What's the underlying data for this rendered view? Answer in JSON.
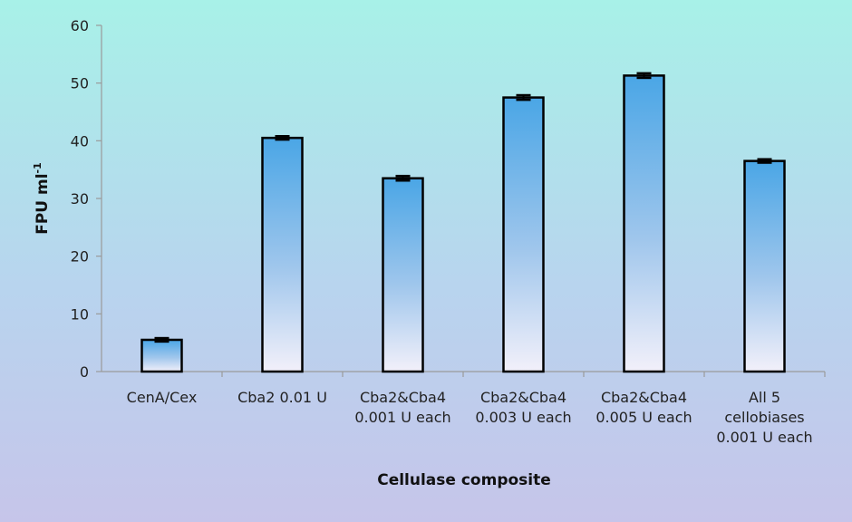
{
  "chart_data": {
    "type": "bar",
    "xlabel": "Cellulase composite",
    "ylabel": {
      "main": "FPU ml",
      "sup": "-1"
    },
    "ylim": [
      0,
      60
    ],
    "yticks": [
      0,
      10,
      20,
      30,
      40,
      50,
      60
    ],
    "grid": false,
    "legend": "none",
    "categories": [
      [
        "CenA/Cex"
      ],
      [
        "Cba2 0.01 U"
      ],
      [
        "Cba2&Cba4",
        "0.001 U each"
      ],
      [
        "Cba2&Cba4",
        "0.003 U each"
      ],
      [
        "Cba2&Cba4",
        "0.005 U each"
      ],
      [
        "All 5",
        "cellobiases",
        "0.001 U each"
      ]
    ],
    "values": [
      5.5,
      40.5,
      33.5,
      47.5,
      51.3,
      36.5
    ],
    "errors": [
      0.3,
      0.3,
      0.4,
      0.4,
      0.4,
      0.3
    ],
    "colors": {
      "bar_top": "#4aa6e6",
      "bar_bottom": "#f2f0fa",
      "outline": "#000000",
      "axis": "#9a9a9a"
    }
  }
}
